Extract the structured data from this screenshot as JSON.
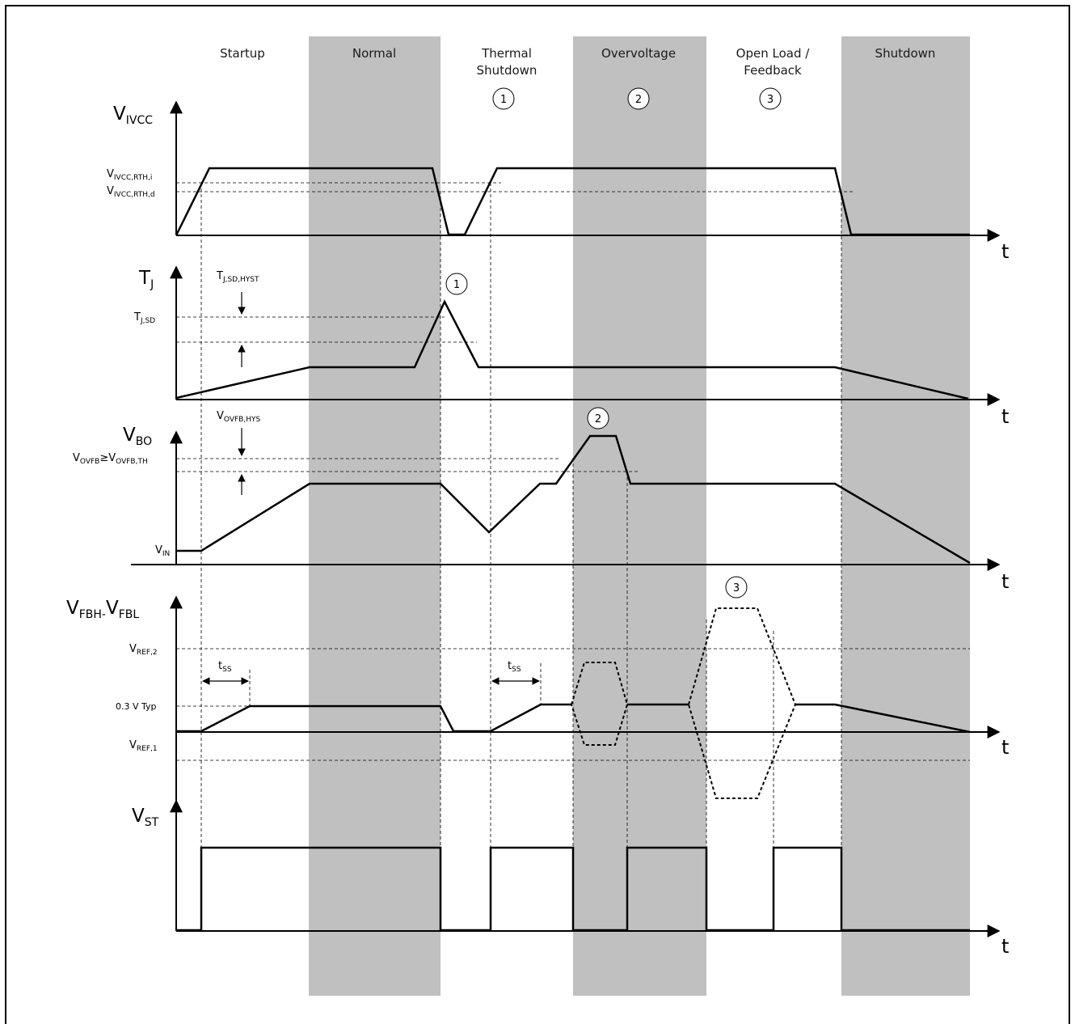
{
  "phases": [
    {
      "id": "startup",
      "label": "Startup",
      "label2": "",
      "marker": ""
    },
    {
      "id": "normal",
      "label": "Normal",
      "label2": "",
      "marker": ""
    },
    {
      "id": "thermal",
      "label": "Thermal",
      "label2": "Shutdown",
      "marker": "1"
    },
    {
      "id": "overvoltage",
      "label": "Overvoltage",
      "label2": "",
      "marker": "2"
    },
    {
      "id": "openload",
      "label": "Open Load /",
      "label2": "Feedback",
      "marker": "3"
    },
    {
      "id": "shutdown",
      "label": "Shutdown",
      "label2": "",
      "marker": ""
    }
  ],
  "shaded_color": "#c0c0c0",
  "time_label": "t",
  "signals": {
    "vivcc": {
      "base": "V",
      "sub": "IVCC",
      "levels": [
        {
          "base": "V",
          "sub": "IVCC,RTH,i"
        },
        {
          "base": "V",
          "sub": "IVCC,RTH,d"
        }
      ]
    },
    "tj": {
      "base": "T",
      "sub": "J",
      "levels": [
        {
          "base": "T",
          "sub": "J,SD"
        }
      ],
      "hyst": {
        "base": "T",
        "sub": "J,SD,HYST"
      },
      "marker": "1"
    },
    "vbo": {
      "base": "V",
      "sub": "BO",
      "levels": [
        {
          "base": "V",
          "sub": "OVFB",
          "rel": "≥",
          "base2": "V",
          "sub2": "OVFB,TH"
        },
        {
          "base": "V",
          "sub": "IN"
        }
      ],
      "hyst": {
        "base": "V",
        "sub": "OVFB,HYS"
      },
      "marker": "2"
    },
    "vfb": {
      "base": "V",
      "sub": "FBH-",
      "base2": "V",
      "sub2": "FBL",
      "levels": [
        {
          "base": "V",
          "sub": "REF,2"
        },
        {
          "text": "0.3 V Typ"
        },
        {
          "base": "V",
          "sub": "REF,1"
        }
      ],
      "tss": {
        "base": "t",
        "sub": "SS"
      },
      "marker": "3"
    },
    "vst": {
      "base": "V",
      "sub": "ST"
    }
  }
}
